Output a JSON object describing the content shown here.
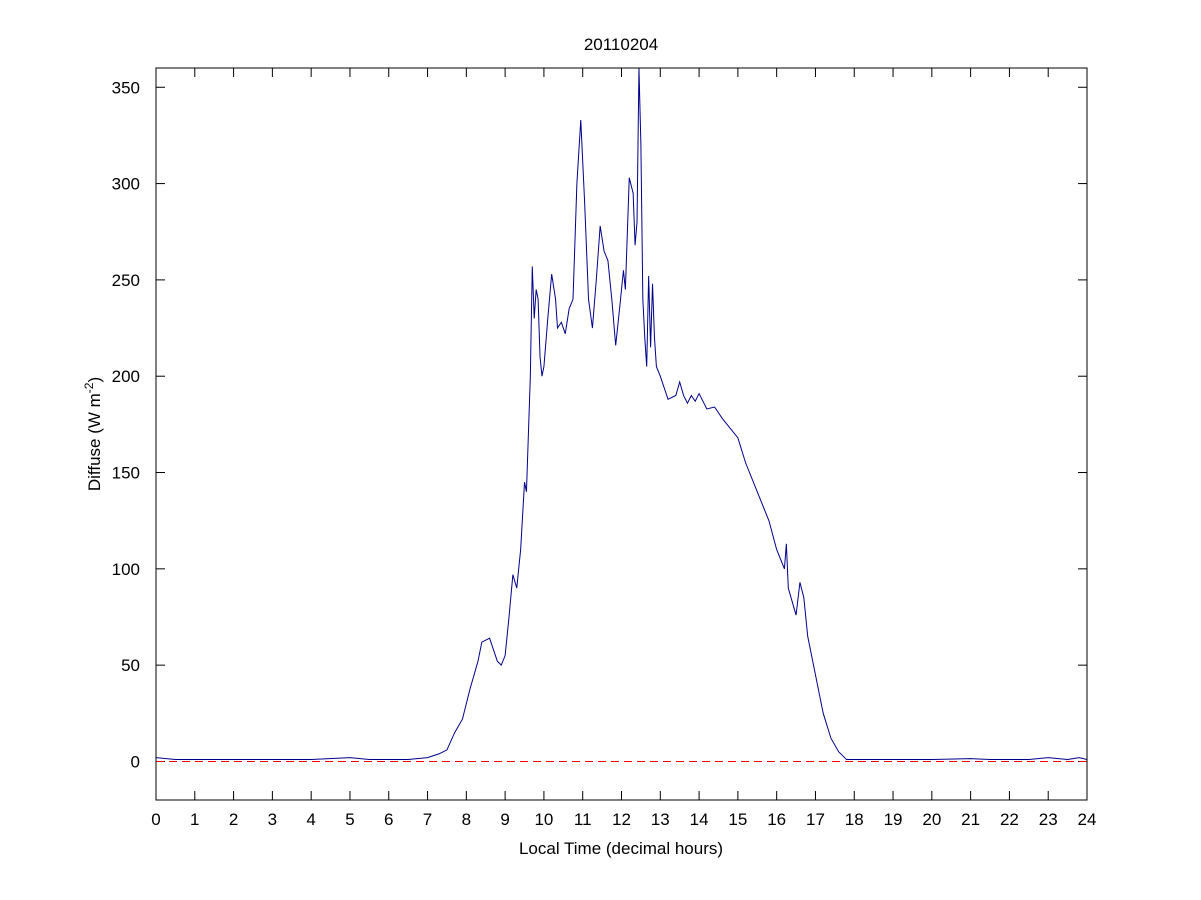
{
  "chart_data": {
    "type": "line",
    "title": "20110204",
    "xlabel": "Local Time (decimal hours)",
    "ylabel": [
      "Diffuse (W m",
      "-2",
      ")"
    ],
    "xlim": [
      0,
      24
    ],
    "ylim": [
      -20,
      360
    ],
    "xticks": [
      0,
      1,
      2,
      3,
      4,
      5,
      6,
      7,
      8,
      9,
      10,
      11,
      12,
      13,
      14,
      15,
      16,
      17,
      18,
      19,
      20,
      21,
      22,
      23,
      24
    ],
    "yticks": [
      0,
      50,
      100,
      150,
      200,
      250,
      300,
      350
    ],
    "reference_line": {
      "y": 0,
      "color": "#ff0000",
      "dashed": true
    },
    "series": [
      {
        "name": "Diffuse",
        "color": "#00008b",
        "x": [
          0,
          0.5,
          1,
          2,
          3,
          4,
          5,
          5.5,
          6,
          6.5,
          7,
          7.3,
          7.5,
          7.7,
          7.9,
          8.1,
          8.3,
          8.4,
          8.6,
          8.8,
          8.9,
          9.0,
          9.1,
          9.2,
          9.3,
          9.4,
          9.5,
          9.55,
          9.6,
          9.65,
          9.7,
          9.75,
          9.8,
          9.85,
          9.9,
          9.95,
          10.0,
          10.1,
          10.2,
          10.3,
          10.35,
          10.45,
          10.55,
          10.65,
          10.75,
          10.85,
          10.95,
          11.05,
          11.15,
          11.25,
          11.35,
          11.45,
          11.55,
          11.65,
          11.75,
          11.85,
          11.95,
          12.05,
          12.1,
          12.2,
          12.3,
          12.35,
          12.4,
          12.45,
          12.5,
          12.55,
          12.6,
          12.65,
          12.7,
          12.75,
          12.8,
          12.85,
          12.9,
          13.0,
          13.2,
          13.4,
          13.5,
          13.6,
          13.7,
          13.8,
          13.9,
          14.0,
          14.2,
          14.4,
          14.6,
          14.8,
          15.0,
          15.2,
          15.4,
          15.6,
          15.8,
          16.0,
          16.2,
          16.25,
          16.3,
          16.5,
          16.6,
          16.7,
          16.8,
          17.0,
          17.2,
          17.4,
          17.6,
          17.8,
          18,
          19,
          20,
          21,
          21.5,
          22,
          22.5,
          23,
          23.5,
          23.8,
          24
        ],
        "values": [
          2,
          1,
          1,
          1,
          1,
          1,
          2,
          1,
          1,
          1,
          2,
          4,
          6,
          15,
          22,
          38,
          52,
          62,
          64,
          52,
          50,
          55,
          75,
          97,
          90,
          110,
          145,
          140,
          170,
          200,
          257,
          230,
          245,
          240,
          210,
          200,
          205,
          230,
          253,
          240,
          225,
          228,
          222,
          235,
          240,
          300,
          333,
          290,
          240,
          225,
          250,
          278,
          265,
          260,
          240,
          216,
          235,
          255,
          245,
          303,
          295,
          268,
          280,
          360,
          320,
          240,
          220,
          205,
          252,
          215,
          248,
          220,
          205,
          200,
          188,
          190,
          197,
          190,
          186,
          190,
          187,
          191,
          183,
          184,
          178,
          173,
          168,
          155,
          145,
          135,
          125,
          110,
          100,
          113,
          90,
          76,
          93,
          85,
          65,
          45,
          25,
          12,
          5,
          1,
          1,
          1,
          1,
          1.5,
          1,
          1,
          1,
          2,
          1,
          2,
          1
        ]
      }
    ]
  }
}
